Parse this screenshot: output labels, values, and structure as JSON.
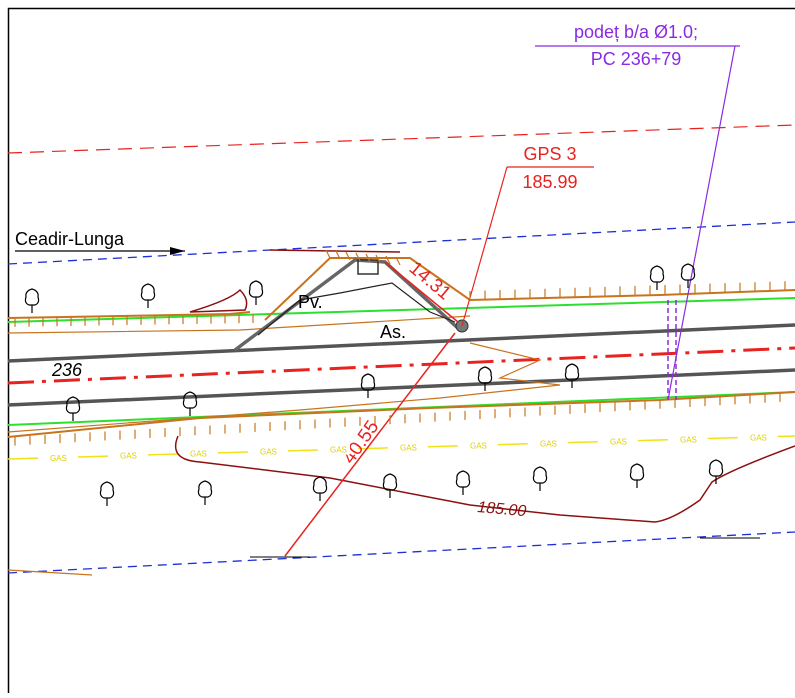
{
  "labels": {
    "culvert": "podeț b/a  Ø1.0;",
    "culvert_station": "PC 236+79",
    "gps_point": "GPS 3",
    "gps_elevation": "185.99",
    "direction": "Ceadir-Lunga",
    "pavilion": "Pv.",
    "bus_stop": "As.",
    "distance_short": "14.31",
    "kilometer": "236",
    "distance_long": "40.55",
    "contour": "185.00",
    "gas": "GAS"
  }
}
